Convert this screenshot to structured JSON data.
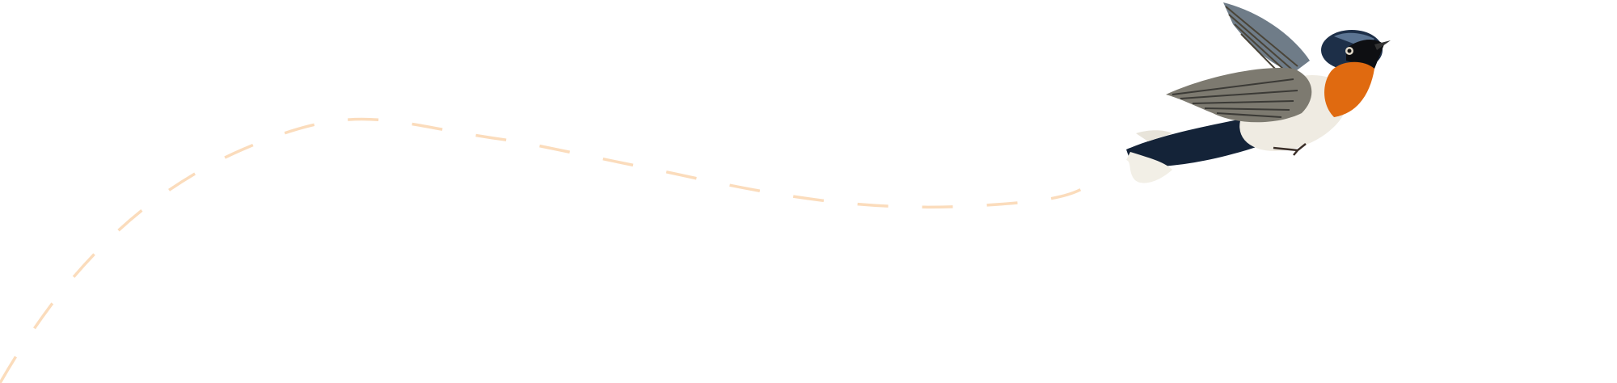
{
  "colors": {
    "background": "#ffffff",
    "flight_path": "#fbdcbc",
    "bird_throat": "#e06a10",
    "bird_back": "#1e3550",
    "bird_belly": "#efebe2",
    "bird_wing": "#7d7a70"
  },
  "illustration": {
    "subject": "bird-in-flight",
    "path_style": "dashed"
  }
}
